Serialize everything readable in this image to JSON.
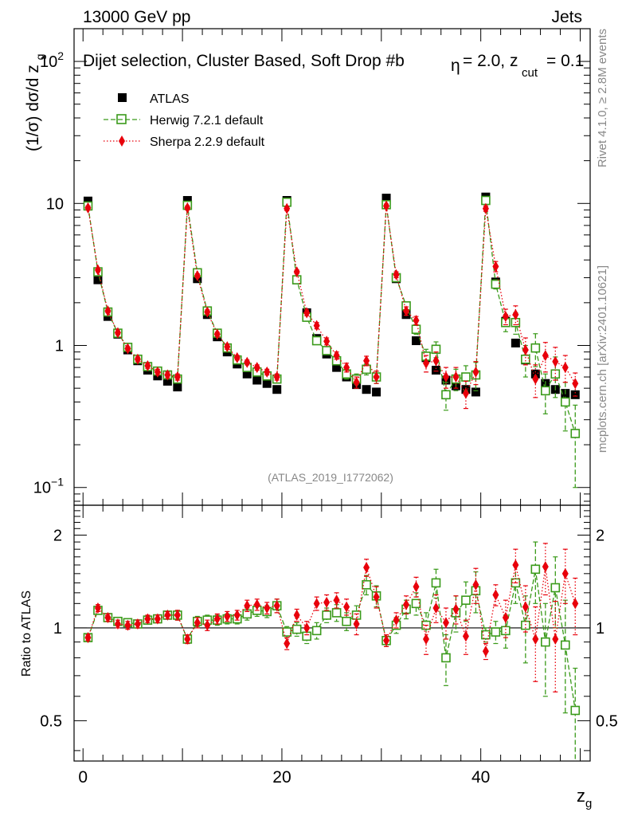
{
  "header": {
    "left": "13000 GeV pp",
    "right": "Jets",
    "plot_title": "Dijet selection, Cluster Based, Soft Drop #b",
    "plot_title_2": "= 2.0, z",
    "plot_title_sub": "cut",
    "plot_title_3": "= 0.1"
  },
  "side_text": {
    "rivet": "Rivet 4.1.0, ≥ 2.8M events",
    "mcplots": "mcplots.cern.ch [arXiv:2401.10621]"
  },
  "watermark": "(ATLAS_2019_I1772062)",
  "colors": {
    "atlas": "#000000",
    "herwig": "#3a9a1a",
    "sherpa": "#e8000b",
    "grey_text": "#888888"
  },
  "chart_data": {
    "type": "scatter",
    "xlabel": "z_g",
    "xlim": [
      -0.9,
      51
    ],
    "x_ticks": [
      0,
      20,
      40
    ],
    "x": [
      0.5,
      1.5,
      2.5,
      3.5,
      4.5,
      5.5,
      6.5,
      7.5,
      8.5,
      9.5,
      10.5,
      11.5,
      12.5,
      13.5,
      14.5,
      15.5,
      16.5,
      17.5,
      18.5,
      19.5,
      20.5,
      21.5,
      22.5,
      23.5,
      24.5,
      25.5,
      26.5,
      27.5,
      28.5,
      29.5,
      30.5,
      31.5,
      32.5,
      33.5,
      34.5,
      35.5,
      36.5,
      37.5,
      38.5,
      39.5,
      40.5,
      41.5,
      42.5,
      43.5,
      44.5,
      45.5,
      46.5,
      47.5,
      48.5,
      49.5
    ],
    "main": {
      "ylabel": "(1/σ) dσ/d z",
      "ylabel_sub": "g",
      "yscale": "log",
      "ylim": [
        0.075,
        170
      ],
      "y_ticks": [
        {
          "value": 0.1,
          "label": "10",
          "sup": "−1"
        },
        {
          "value": 1,
          "label": "1",
          "sup": ""
        },
        {
          "value": 10,
          "label": "10",
          "sup": ""
        },
        {
          "value": 100,
          "label": "10",
          "sup": "2"
        }
      ],
      "series": [
        {
          "name": "ATLAS",
          "marker": "filled-square",
          "values": [
            10.4,
            2.9,
            1.6,
            1.2,
            0.93,
            0.78,
            0.67,
            0.61,
            0.56,
            0.51,
            10.5,
            2.95,
            1.65,
            1.15,
            0.9,
            0.74,
            0.63,
            0.57,
            0.54,
            0.49,
            10.5,
            2.9,
            1.7,
            1.12,
            0.87,
            0.7,
            0.6,
            0.53,
            0.49,
            0.47,
            10.9,
            2.95,
            1.65,
            1.08,
            0.82,
            0.67,
            0.57,
            0.52,
            0.49,
            0.47,
            11.1,
            2.8,
            1.48,
            1.04,
            0.79,
            0.63,
            0.54,
            0.49,
            0.46,
            0.45
          ],
          "errors": []
        },
        {
          "name": "Herwig 7.2.1 default",
          "marker": "open-square",
          "values": [
            9.6,
            3.3,
            1.72,
            1.22,
            0.97,
            0.8,
            0.71,
            0.66,
            0.62,
            0.58,
            9.7,
            3.25,
            1.75,
            1.22,
            0.96,
            0.79,
            0.7,
            0.65,
            0.61,
            0.58,
            10.2,
            2.9,
            1.58,
            1.08,
            0.92,
            0.78,
            0.63,
            0.58,
            0.68,
            0.6,
            9.8,
            3.0,
            1.9,
            1.3,
            0.84,
            0.94,
            0.45,
            0.58,
            0.6,
            0.62,
            10.5,
            2.7,
            1.45,
            1.45,
            0.8,
            0.96,
            0.48,
            0.63,
            0.4,
            0.24
          ],
          "errors": [
            0.3,
            0.1,
            0.05,
            0.04,
            0.03,
            0.03,
            0.03,
            0.03,
            0.03,
            0.03,
            0.3,
            0.1,
            0.06,
            0.04,
            0.04,
            0.03,
            0.03,
            0.03,
            0.03,
            0.03,
            0.3,
            0.1,
            0.08,
            0.06,
            0.05,
            0.05,
            0.05,
            0.05,
            0.06,
            0.06,
            0.3,
            0.15,
            0.12,
            0.1,
            0.1,
            0.12,
            0.1,
            0.1,
            0.12,
            0.14,
            0.4,
            0.2,
            0.2,
            0.25,
            0.2,
            0.25,
            0.15,
            0.2,
            0.15,
            0.14
          ]
        },
        {
          "name": "Sherpa 2.2.9 default",
          "marker": "filled-diamond",
          "values": [
            9.3,
            3.4,
            1.75,
            1.23,
            0.95,
            0.8,
            0.72,
            0.65,
            0.62,
            0.6,
            9.3,
            3.1,
            1.72,
            1.2,
            0.98,
            0.82,
            0.76,
            0.7,
            0.65,
            0.6,
            9.2,
            3.3,
            1.7,
            1.38,
            1.07,
            0.85,
            0.7,
            0.55,
            0.78,
            0.6,
            9.6,
            3.15,
            1.75,
            1.5,
            0.75,
            0.78,
            0.6,
            0.6,
            0.46,
            0.65,
            9.2,
            3.6,
            1.6,
            1.65,
            0.93,
            0.58,
            0.85,
            0.77,
            0.7,
            0.54
          ],
          "errors": [
            0.3,
            0.1,
            0.05,
            0.04,
            0.03,
            0.03,
            0.03,
            0.03,
            0.03,
            0.03,
            0.3,
            0.1,
            0.06,
            0.04,
            0.04,
            0.03,
            0.03,
            0.03,
            0.03,
            0.03,
            0.3,
            0.1,
            0.08,
            0.07,
            0.06,
            0.05,
            0.05,
            0.05,
            0.06,
            0.06,
            0.3,
            0.15,
            0.12,
            0.1,
            0.1,
            0.12,
            0.1,
            0.1,
            0.1,
            0.12,
            0.4,
            0.3,
            0.2,
            0.25,
            0.2,
            0.15,
            0.2,
            0.2,
            0.15,
            0.1
          ]
        }
      ]
    },
    "ratio": {
      "ylabel": "Ratio to ATLAS",
      "yscale": "log",
      "ylim": [
        0.37,
        2.5
      ],
      "y_ticks": [
        {
          "value": 0.5,
          "label": "0.5"
        },
        {
          "value": 1,
          "label": "1"
        },
        {
          "value": 2,
          "label": "2"
        }
      ],
      "series": [
        {
          "name": "Herwig 7.2.1 default",
          "values": [
            0.93,
            1.14,
            1.08,
            1.05,
            1.04,
            1.03,
            1.06,
            1.07,
            1.1,
            1.1,
            0.92,
            1.05,
            1.06,
            1.06,
            1.07,
            1.07,
            1.11,
            1.14,
            1.13,
            1.18,
            0.97,
            0.99,
            0.94,
            0.98,
            1.1,
            1.12,
            1.05,
            1.1,
            1.38,
            1.27,
            0.91,
            1.02,
            1.15,
            1.2,
            1.02,
            1.4,
            0.8,
            1.12,
            1.23,
            1.32,
            0.95,
            0.97,
            0.98,
            1.4,
            1.02,
            1.55,
            0.9,
            1.35,
            0.88,
            0.54
          ],
          "errors": [
            0.02,
            0.03,
            0.03,
            0.03,
            0.03,
            0.03,
            0.03,
            0.03,
            0.03,
            0.04,
            0.03,
            0.04,
            0.04,
            0.04,
            0.04,
            0.04,
            0.05,
            0.05,
            0.05,
            0.06,
            0.04,
            0.05,
            0.05,
            0.06,
            0.06,
            0.07,
            0.07,
            0.08,
            0.1,
            0.1,
            0.04,
            0.06,
            0.08,
            0.1,
            0.1,
            0.15,
            0.15,
            0.15,
            0.18,
            0.2,
            0.05,
            0.08,
            0.12,
            0.2,
            0.25,
            0.35,
            0.3,
            0.35,
            0.35,
            0.2
          ]
        },
        {
          "name": "Sherpa 2.2.9 default",
          "values": [
            0.93,
            1.16,
            1.08,
            1.03,
            1.02,
            1.03,
            1.07,
            1.07,
            1.1,
            1.1,
            0.92,
            1.04,
            1.02,
            1.07,
            1.09,
            1.1,
            1.18,
            1.19,
            1.16,
            1.18,
            0.89,
            1.1,
            1.0,
            1.2,
            1.21,
            1.23,
            1.17,
            1.03,
            1.57,
            1.26,
            0.91,
            1.06,
            1.19,
            1.36,
            0.92,
            1.16,
            1.04,
            1.15,
            0.94,
            1.38,
            0.84,
            1.28,
            1.08,
            1.6,
            1.17,
            0.92,
            1.58,
            0.92,
            1.5,
            1.2
          ],
          "errors": [
            0.02,
            0.03,
            0.03,
            0.03,
            0.03,
            0.03,
            0.03,
            0.03,
            0.03,
            0.04,
            0.03,
            0.04,
            0.04,
            0.04,
            0.04,
            0.04,
            0.05,
            0.05,
            0.05,
            0.06,
            0.04,
            0.05,
            0.05,
            0.06,
            0.07,
            0.07,
            0.07,
            0.08,
            0.1,
            0.1,
            0.04,
            0.06,
            0.08,
            0.1,
            0.1,
            0.12,
            0.12,
            0.12,
            0.12,
            0.18,
            0.05,
            0.1,
            0.15,
            0.2,
            0.2,
            0.25,
            0.3,
            0.3,
            0.3,
            0.25
          ]
        }
      ]
    }
  }
}
